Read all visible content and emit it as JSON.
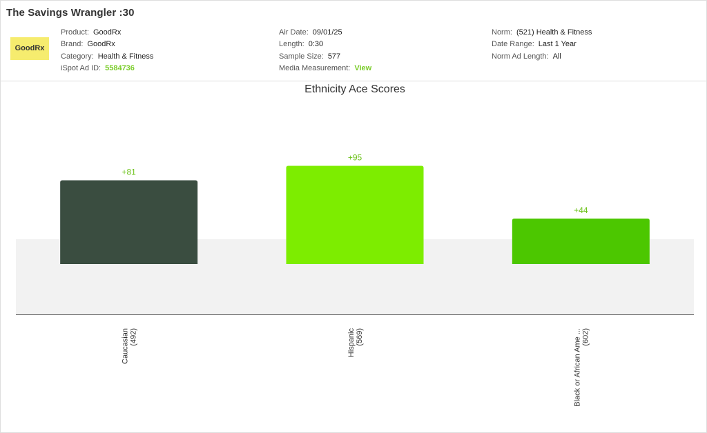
{
  "ad": {
    "title": "The Savings Wrangler :30",
    "logo_text": "GoodRx"
  },
  "meta": {
    "col1": [
      {
        "label": "Product:",
        "value": "GoodRx",
        "link": false
      },
      {
        "label": "Brand:",
        "value": "GoodRx",
        "link": false
      },
      {
        "label": "Category:",
        "value": "Health & Fitness",
        "link": false
      },
      {
        "label": "iSpot Ad ID:",
        "value": "5584736",
        "link": true
      }
    ],
    "col2": [
      {
        "label": "Air Date:",
        "value": "09/01/25",
        "link": false
      },
      {
        "label": "Length:",
        "value": "0:30",
        "link": false
      },
      {
        "label": "Sample Size:",
        "value": "577",
        "link": false
      },
      {
        "label": "Media Measurement:",
        "value": "View",
        "link": true
      }
    ],
    "col3": [
      {
        "label": "Norm:",
        "value": "(521) Health & Fitness",
        "link": false
      },
      {
        "label": "Date Range:",
        "value": "Last 1 Year",
        "link": false
      },
      {
        "label": "Norm Ad Length:",
        "value": "All",
        "link": false
      }
    ]
  },
  "colors": {
    "link": "#7acc29",
    "logo_bg": "#f6ec6e",
    "norm_band": "#f2f2f2"
  },
  "chart_data": {
    "type": "bar",
    "title": "Ethnicity Ace Scores",
    "categories": [
      "Caucasian",
      "Hispanic",
      "Black or African Ame ..."
    ],
    "counts": [
      "(492)",
      "(569)",
      "(602)"
    ],
    "values": [
      81,
      95,
      44
    ],
    "value_labels": [
      "+81",
      "+95",
      "+44"
    ],
    "bar_colors": [
      "#3a4d40",
      "#7ded00",
      "#4cc700"
    ],
    "norm_band": [
      -48,
      24
    ],
    "ylim": [
      -99,
      200
    ],
    "grid": false,
    "legend": "none"
  }
}
